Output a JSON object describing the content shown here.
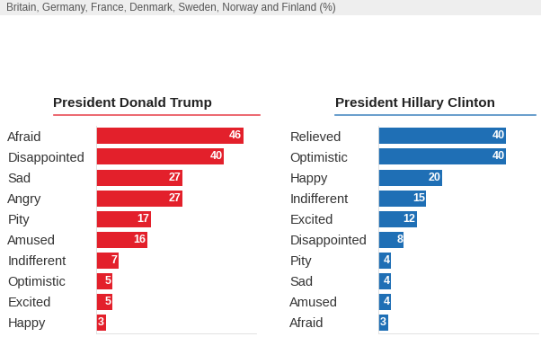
{
  "chart_data": [
    {
      "type": "bar",
      "orientation": "horizontal",
      "subtitle": "Britain, Germany, France, Denmark, Sweden, Norway and Finland (%)",
      "title": "President Donald Trump",
      "categories": [
        "Afraid",
        "Disappointed",
        "Sad",
        "Angry",
        "Pity",
        "Amused",
        "Indifferent",
        "Optimistic",
        "Excited",
        "Happy"
      ],
      "values": [
        46,
        40,
        27,
        27,
        17,
        16,
        7,
        5,
        5,
        3
      ],
      "color": "#e3202b",
      "data_labels": true,
      "tick_labels": "y",
      "xlim": [
        0,
        50
      ],
      "xticks": []
    },
    {
      "type": "bar",
      "orientation": "horizontal",
      "title": "President Hillary Clinton",
      "categories": [
        "Relieved",
        "Optimistic",
        "Happy",
        "Indifferent",
        "Excited",
        "Disappointed",
        "Pity",
        "Sad",
        "Amused",
        "Afraid"
      ],
      "values": [
        40,
        40,
        20,
        15,
        12,
        8,
        4,
        4,
        4,
        3
      ],
      "color": "#1f6fb5",
      "data_labels": true,
      "tick_labels": "y",
      "xlim": [
        0,
        50
      ],
      "xticks": []
    }
  ]
}
